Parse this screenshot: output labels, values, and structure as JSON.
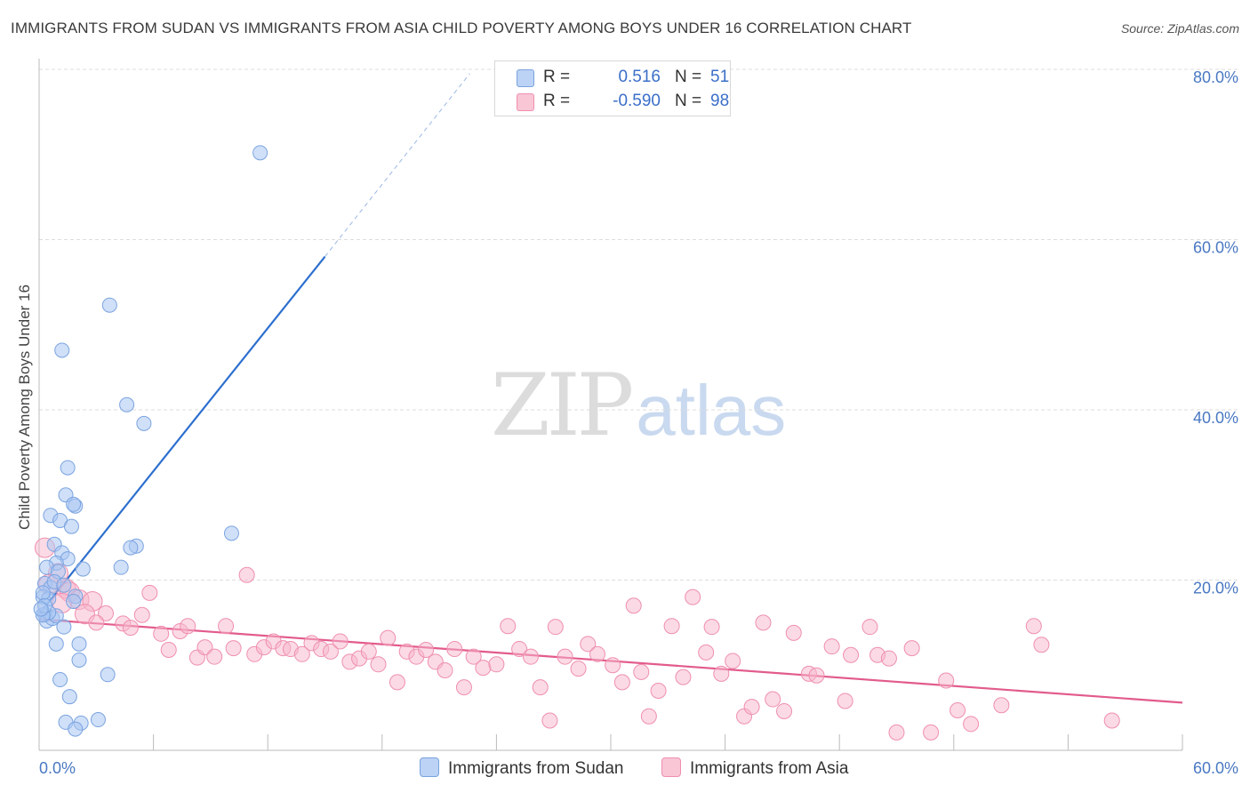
{
  "header": {
    "title": "IMMIGRANTS FROM SUDAN VS IMMIGRANTS FROM ASIA CHILD POVERTY AMONG BOYS UNDER 16 CORRELATION CHART",
    "source": "Source: ZipAtlas.com"
  },
  "watermark": {
    "zip": "ZIP",
    "atlas": "atlas"
  },
  "legend": {
    "r_label": "R =",
    "n_label": "N =",
    "sudan": {
      "r": "0.516",
      "n": "51",
      "color": "#a9c6f2"
    },
    "asia": {
      "r": "-0.590",
      "n": "98",
      "color": "#f7b6cb"
    }
  },
  "bottom_legend": {
    "sudan": "Immigrants from Sudan",
    "asia": "Immigrants from Asia"
  },
  "chart_data": {
    "type": "scatter",
    "title": "IMMIGRANTS FROM SUDAN VS IMMIGRANTS FROM ASIA CHILD POVERTY AMONG BOYS UNDER 16 CORRELATION CHART",
    "xlabel": "",
    "ylabel": "Child Poverty Among Boys Under 16",
    "xlim": [
      0,
      60
    ],
    "ylim": [
      0,
      80
    ],
    "x_tick_labels": [
      "0.0%",
      "60.0%"
    ],
    "y_ticks": [
      20,
      40,
      60,
      80
    ],
    "y_tick_labels": [
      "20.0%",
      "40.0%",
      "60.0%",
      "80.0%"
    ],
    "grid": true,
    "series": [
      {
        "name": "Immigrants from Sudan",
        "color": "#a9c6f2",
        "stroke": "#7aa3e0",
        "trend": {
          "x0": 0,
          "y0": 16.0,
          "x1": 15,
          "y1": 58.0,
          "x_dash_end": 22.6,
          "y_dash_end": 79.5,
          "color": "#2d6fce"
        },
        "points": [
          [
            11.6,
            70.2
          ],
          [
            3.7,
            52.3
          ],
          [
            1.2,
            47.0
          ],
          [
            4.6,
            40.6
          ],
          [
            5.5,
            38.4
          ],
          [
            1.5,
            33.2
          ],
          [
            1.4,
            30.0
          ],
          [
            1.9,
            28.7
          ],
          [
            1.8,
            28.9
          ],
          [
            0.6,
            27.6
          ],
          [
            1.1,
            27.0
          ],
          [
            1.7,
            26.3
          ],
          [
            10.1,
            25.5
          ],
          [
            5.1,
            24.0
          ],
          [
            4.8,
            23.8
          ],
          [
            0.8,
            24.2
          ],
          [
            1.2,
            23.2
          ],
          [
            1.5,
            22.5
          ],
          [
            0.9,
            22.0
          ],
          [
            0.4,
            21.5
          ],
          [
            1.0,
            21.0
          ],
          [
            2.3,
            21.3
          ],
          [
            4.3,
            21.5
          ],
          [
            0.3,
            19.6
          ],
          [
            0.6,
            19.1
          ],
          [
            0.8,
            19.8
          ],
          [
            1.3,
            19.4
          ],
          [
            0.2,
            18.0
          ],
          [
            0.5,
            17.8
          ],
          [
            1.9,
            18.1
          ],
          [
            1.8,
            17.5
          ],
          [
            0.3,
            16.0
          ],
          [
            0.4,
            15.2
          ],
          [
            0.7,
            15.5
          ],
          [
            0.9,
            15.8
          ],
          [
            1.3,
            14.5
          ],
          [
            0.5,
            16.2
          ],
          [
            0.2,
            15.9
          ],
          [
            0.9,
            12.5
          ],
          [
            2.1,
            12.5
          ],
          [
            2.1,
            10.6
          ],
          [
            1.1,
            8.3
          ],
          [
            3.6,
            8.9
          ],
          [
            1.6,
            6.3
          ],
          [
            1.4,
            3.3
          ],
          [
            2.2,
            3.2
          ],
          [
            3.1,
            3.6
          ],
          [
            1.9,
            2.5
          ],
          [
            0.2,
            18.5
          ],
          [
            0.3,
            17.0
          ],
          [
            0.1,
            16.6
          ]
        ]
      },
      {
        "name": "Immigrants from Asia",
        "color": "#f7b6cb",
        "stroke": "#ef8fae",
        "trend": {
          "x0": 0,
          "y0": 15.4,
          "x1": 60,
          "y1": 5.6,
          "color": "#e25b8c"
        },
        "points": [
          [
            0.3,
            23.8
          ],
          [
            1.4,
            19.0
          ],
          [
            1.0,
            20.8
          ],
          [
            1.6,
            18.6
          ],
          [
            2.1,
            17.7
          ],
          [
            2.8,
            17.5
          ],
          [
            3.5,
            16.1
          ],
          [
            4.4,
            14.9
          ],
          [
            4.8,
            14.4
          ],
          [
            5.4,
            15.9
          ],
          [
            5.8,
            18.5
          ],
          [
            6.4,
            13.7
          ],
          [
            6.8,
            11.8
          ],
          [
            7.4,
            14.0
          ],
          [
            7.8,
            14.6
          ],
          [
            8.3,
            10.9
          ],
          [
            8.7,
            12.1
          ],
          [
            9.2,
            11.0
          ],
          [
            9.8,
            14.6
          ],
          [
            10.2,
            12.0
          ],
          [
            10.9,
            20.6
          ],
          [
            11.3,
            11.3
          ],
          [
            11.8,
            12.1
          ],
          [
            12.3,
            12.8
          ],
          [
            12.8,
            12.0
          ],
          [
            13.2,
            11.9
          ],
          [
            13.8,
            11.3
          ],
          [
            14.3,
            12.6
          ],
          [
            14.8,
            11.9
          ],
          [
            15.3,
            11.6
          ],
          [
            15.8,
            12.8
          ],
          [
            16.3,
            10.4
          ],
          [
            16.8,
            10.8
          ],
          [
            17.3,
            11.6
          ],
          [
            17.8,
            10.1
          ],
          [
            18.3,
            13.2
          ],
          [
            18.8,
            8.0
          ],
          [
            19.3,
            11.6
          ],
          [
            19.8,
            11.0
          ],
          [
            20.3,
            11.8
          ],
          [
            20.8,
            10.4
          ],
          [
            21.3,
            9.4
          ],
          [
            21.8,
            11.9
          ],
          [
            22.3,
            7.4
          ],
          [
            22.8,
            11.0
          ],
          [
            23.3,
            9.7
          ],
          [
            24.0,
            10.1
          ],
          [
            24.6,
            14.6
          ],
          [
            25.2,
            11.9
          ],
          [
            25.8,
            11.0
          ],
          [
            26.3,
            7.4
          ],
          [
            26.8,
            3.5
          ],
          [
            27.1,
            14.5
          ],
          [
            27.6,
            11.0
          ],
          [
            28.3,
            9.6
          ],
          [
            28.8,
            12.5
          ],
          [
            29.3,
            11.3
          ],
          [
            30.1,
            10.0
          ],
          [
            30.6,
            8.0
          ],
          [
            31.2,
            17.0
          ],
          [
            31.6,
            9.2
          ],
          [
            32.0,
            4.0
          ],
          [
            32.5,
            7.0
          ],
          [
            33.2,
            14.6
          ],
          [
            33.8,
            8.6
          ],
          [
            34.3,
            18.0
          ],
          [
            35.0,
            11.5
          ],
          [
            35.3,
            14.5
          ],
          [
            35.8,
            9.0
          ],
          [
            36.4,
            10.5
          ],
          [
            37.0,
            4.0
          ],
          [
            37.4,
            5.1
          ],
          [
            38.0,
            15.0
          ],
          [
            38.5,
            6.0
          ],
          [
            39.1,
            4.6
          ],
          [
            39.6,
            13.8
          ],
          [
            40.4,
            9.0
          ],
          [
            40.8,
            8.8
          ],
          [
            41.6,
            12.2
          ],
          [
            42.3,
            5.8
          ],
          [
            42.6,
            11.2
          ],
          [
            43.6,
            14.5
          ],
          [
            44.0,
            11.2
          ],
          [
            44.6,
            10.8
          ],
          [
            45.0,
            2.1
          ],
          [
            45.8,
            12.0
          ],
          [
            46.8,
            2.1
          ],
          [
            47.6,
            8.2
          ],
          [
            48.2,
            4.7
          ],
          [
            48.9,
            3.1
          ],
          [
            50.5,
            5.3
          ],
          [
            52.2,
            14.6
          ],
          [
            52.6,
            12.4
          ],
          [
            56.3,
            3.5
          ],
          [
            0.5,
            19.5
          ],
          [
            1.2,
            17.3
          ],
          [
            2.4,
            16.0
          ],
          [
            3.0,
            15.0
          ]
        ]
      }
    ]
  }
}
